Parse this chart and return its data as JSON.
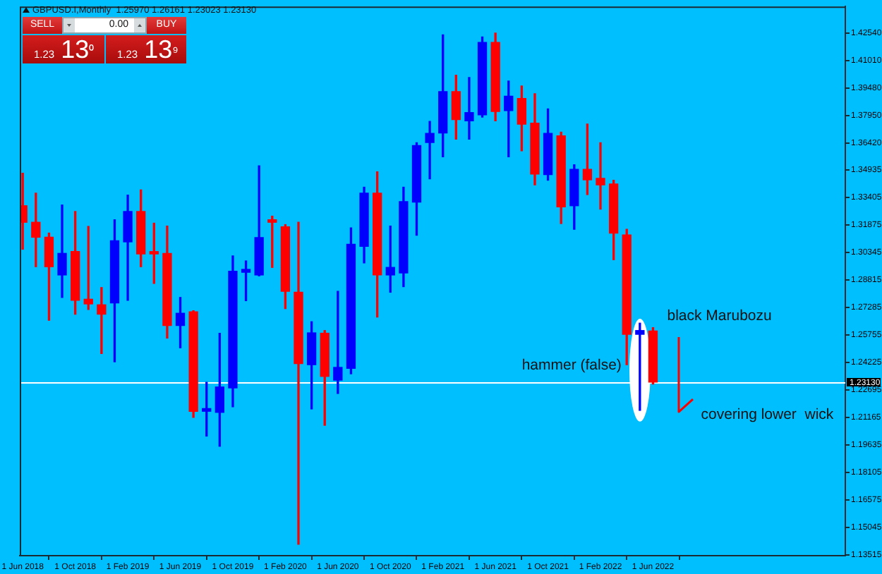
{
  "chart_data": {
    "type": "candlestick",
    "title": "GBPUSD.I,Monthly  1.25970 1.26161 1.23023 1.23130",
    "x": [
      "2018-06",
      "2018-07",
      "2018-08",
      "2018-09",
      "2018-10",
      "2018-11",
      "2018-12",
      "2019-01",
      "2019-02",
      "2019-03",
      "2019-04",
      "2019-05",
      "2019-06",
      "2019-07",
      "2019-08",
      "2019-09",
      "2019-10",
      "2019-11",
      "2019-12",
      "2020-01",
      "2020-02",
      "2020-03",
      "2020-04",
      "2020-05",
      "2020-06",
      "2020-07",
      "2020-08",
      "2020-09",
      "2020-10",
      "2020-11",
      "2020-12",
      "2021-01",
      "2021-02",
      "2021-03",
      "2021-04",
      "2021-05",
      "2021-06",
      "2021-07",
      "2021-08",
      "2021-09",
      "2021-10",
      "2021-11",
      "2021-12",
      "2022-01",
      "2022-02",
      "2022-03",
      "2022-04",
      "2022-05",
      "2022-06"
    ],
    "ohlc": [
      [
        1.3294,
        1.3475,
        1.3052,
        1.3202
      ],
      [
        1.3202,
        1.3364,
        1.2955,
        1.3119
      ],
      [
        1.3119,
        1.3142,
        1.2657,
        1.2955
      ],
      [
        1.2909,
        1.3298,
        1.2784,
        1.3029
      ],
      [
        1.3039,
        1.3262,
        1.2691,
        1.2768
      ],
      [
        1.2774,
        1.3179,
        1.2717,
        1.2748
      ],
      [
        1.2743,
        1.2839,
        1.2472,
        1.2691
      ],
      [
        1.2753,
        1.3216,
        1.2426,
        1.3099
      ],
      [
        1.3093,
        1.3353,
        1.2768,
        1.3262
      ],
      [
        1.3262,
        1.3382,
        1.2955,
        1.3026
      ],
      [
        1.3039,
        1.3197,
        1.2862,
        1.3026
      ],
      [
        1.3029,
        1.3181,
        1.2558,
        1.2628
      ],
      [
        1.2628,
        1.2784,
        1.2504,
        1.2696
      ],
      [
        1.2704,
        1.271,
        1.2117,
        1.2151
      ],
      [
        1.2151,
        1.2312,
        1.2013,
        1.2166
      ],
      [
        1.2145,
        1.2585,
        1.1956,
        1.2286
      ],
      [
        1.2281,
        1.3015,
        1.2176,
        1.293
      ],
      [
        1.2924,
        1.2987,
        1.2766,
        1.294
      ],
      [
        1.2909,
        1.3516,
        1.2904,
        1.3117
      ],
      [
        1.3216,
        1.3236,
        1.2951,
        1.3202
      ],
      [
        1.3177,
        1.3189,
        1.2722,
        1.2818
      ],
      [
        1.2813,
        1.3202,
        1.1411,
        1.2416
      ],
      [
        1.241,
        1.2649,
        1.2164,
        1.2587
      ],
      [
        1.2585,
        1.26,
        1.2073,
        1.2345
      ],
      [
        1.2324,
        1.2818,
        1.225,
        1.2395
      ],
      [
        1.239,
        1.3171,
        1.2359,
        1.308
      ],
      [
        1.3068,
        1.3397,
        1.2976,
        1.3364
      ],
      [
        1.3364,
        1.3483,
        1.2675,
        1.2909
      ],
      [
        1.2909,
        1.3181,
        1.2813,
        1.2951
      ],
      [
        1.292,
        1.3397,
        1.2844,
        1.3317
      ],
      [
        1.3314,
        1.3644,
        1.313,
        1.3629
      ],
      [
        1.3646,
        1.3763,
        1.3444,
        1.3696
      ],
      [
        1.3699,
        1.4244,
        1.3566,
        1.3929
      ],
      [
        1.3929,
        1.402,
        1.3664,
        1.3773
      ],
      [
        1.3766,
        1.4007,
        1.3664,
        1.3812
      ],
      [
        1.38,
        1.4233,
        1.3787,
        1.4202
      ],
      [
        1.4202,
        1.4254,
        1.3766,
        1.3818
      ],
      [
        1.3823,
        1.3987,
        1.3566,
        1.3903
      ],
      [
        1.389,
        1.396,
        1.36,
        1.3748
      ],
      [
        1.3753,
        1.3917,
        1.341,
        1.347
      ],
      [
        1.3467,
        1.3833,
        1.3436,
        1.3696
      ],
      [
        1.3683,
        1.3703,
        1.3195,
        1.3288
      ],
      [
        1.3294,
        1.3522,
        1.3163,
        1.3496
      ],
      [
        1.3496,
        1.3748,
        1.3356,
        1.3438
      ],
      [
        1.3446,
        1.3644,
        1.3275,
        1.341
      ],
      [
        1.3415,
        1.3436,
        1.2994,
        1.3142
      ],
      [
        1.3132,
        1.3163,
        1.241,
        1.2579
      ],
      [
        1.2579,
        1.2641,
        1.2156,
        1.26
      ],
      [
        1.2597,
        1.26161,
        1.23023,
        1.2313
      ]
    ],
    "colors": [
      "#ff0000",
      "#ff0000",
      "#ff0000",
      "#0000ff",
      "#ff0000",
      "#ff0000",
      "#ff0000",
      "#0000ff",
      "#0000ff",
      "#ff0000",
      "#ff0000",
      "#ff0000",
      "#0000ff",
      "#ff0000",
      "#0000ff",
      "#0000ff",
      "#0000ff",
      "#0000ff",
      "#0000ff",
      "#ff0000",
      "#ff0000",
      "#ff0000",
      "#0000ff",
      "#ff0000",
      "#0000ff",
      "#0000ff",
      "#0000ff",
      "#ff0000",
      "#0000ff",
      "#0000ff",
      "#0000ff",
      "#0000ff",
      "#0000ff",
      "#ff0000",
      "#0000ff",
      "#0000ff",
      "#ff0000",
      "#0000ff",
      "#ff0000",
      "#ff0000",
      "#0000ff",
      "#ff0000",
      "#0000ff",
      "#ff0000",
      "#ff0000",
      "#ff0000",
      "#ff0000",
      "#0000ff",
      "#ff0000"
    ],
    "xlim": [
      "2018-05-25",
      "2023-08-21"
    ],
    "xticks": [
      {
        "value": "2018-06-01",
        "label": "1 Jun 2018"
      },
      {
        "value": "2018-10-01",
        "label": "1 Oct 2018"
      },
      {
        "value": "2019-02-01",
        "label": "1 Feb 2019"
      },
      {
        "value": "2019-06-01",
        "label": "1 Jun 2019"
      },
      {
        "value": "2019-10-01",
        "label": "1 Oct 2019"
      },
      {
        "value": "2020-02-01",
        "label": "1 Feb 2020"
      },
      {
        "value": "2020-06-01",
        "label": "1 Jun 2020"
      },
      {
        "value": "2020-10-01",
        "label": "1 Oct 2020"
      },
      {
        "value": "2021-02-01",
        "label": "1 Feb 2021"
      },
      {
        "value": "2021-06-01",
        "label": "1 Jun 2021"
      },
      {
        "value": "2021-10-01",
        "label": "1 Oct 2021"
      },
      {
        "value": "2022-02-01",
        "label": "1 Feb 2022"
      },
      {
        "value": "2022-06-01",
        "label": "1 Jun 2022"
      }
    ],
    "ylim": [
      1.1348,
      1.4402
    ],
    "yticks": [
      {
        "value": 1.4254,
        "label": "1.42540"
      },
      {
        "value": 1.4101,
        "label": "1.41010"
      },
      {
        "value": 1.3948,
        "label": "1.39480"
      },
      {
        "value": 1.3795,
        "label": "1.37950"
      },
      {
        "value": 1.3642,
        "label": "1.36420"
      },
      1.34935,
      1.33405,
      1.31875,
      1.30345,
      1.28815,
      1.27285,
      1.25755,
      1.24225,
      1.22695,
      1.21165,
      1.19635,
      1.18105,
      1.16575,
      1.15045,
      1.13515
    ],
    "ref_lines": [
      {
        "axis": "y",
        "value": 1.2313,
        "label": "1.23130",
        "color": "#ffffff"
      }
    ],
    "annotations": [
      "SELL",
      "0.00",
      "BUY",
      "1.23 13⁰",
      "1.23 13⁹",
      {
        "text": "hammer (false)",
        "x": "2022-05",
        "y": 1.2405
      },
      "black Marubozu",
      "covering lower  wick"
    ]
  }
}
